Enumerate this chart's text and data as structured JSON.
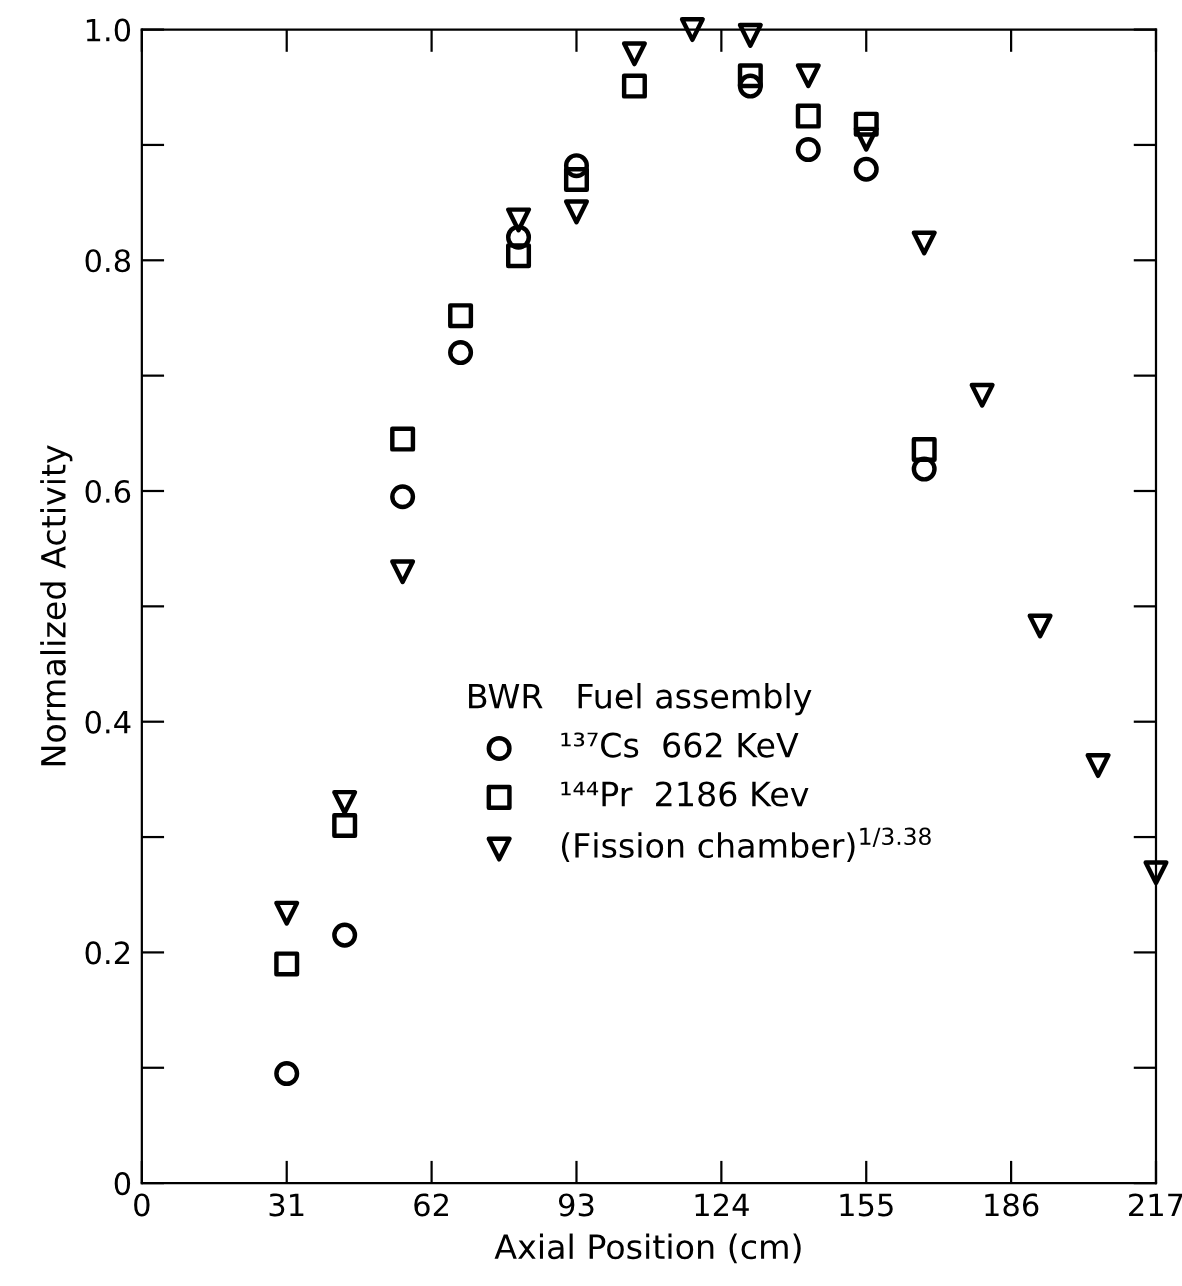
{
  "chart_data": {
    "type": "scatter",
    "xlabel": "Axial Position (cm)",
    "ylabel": "Normalized Activity",
    "legend_title": "BWR   Fuel assembly",
    "x": [
      31,
      43.4,
      55.8,
      68.2,
      80.6,
      93,
      105.4,
      117.8,
      130.2,
      142.6,
      155,
      167.4,
      179.8,
      192.2,
      204.6,
      217
    ],
    "series": [
      {
        "name": "¹³⁷Cs  662 KeV",
        "color": "#000000",
        "marker": "circle",
        "values": [
          0.095,
          0.215,
          0.595,
          0.72,
          0.82,
          0.882,
          null,
          null,
          0.951,
          0.896,
          0.879,
          0.619,
          null,
          null,
          null,
          null
        ]
      },
      {
        "name": "¹⁴⁴Pr  2186 Kev",
        "color": "#000000",
        "marker": "square",
        "values": [
          0.19,
          0.31,
          0.645,
          0.752,
          0.804,
          0.87,
          0.951,
          null,
          0.96,
          0.925,
          0.918,
          0.636,
          null,
          null,
          null,
          null
        ]
      },
      {
        "name": "(Fission chamber)$^{1/3.38}$",
        "color": "#000000",
        "marker": "triangle",
        "values": [
          0.234,
          0.33,
          0.53,
          null,
          0.835,
          0.842,
          0.979,
          1.0,
          0.995,
          0.96,
          0.905,
          0.815,
          0.683,
          0.483,
          0.362,
          0.269
        ]
      }
    ],
    "xlim": [
      0,
      217
    ],
    "ylim": [
      0,
      1.0
    ],
    "xticks": [
      0,
      31,
      62,
      93,
      124,
      155,
      186,
      217
    ],
    "yticks": [
      0,
      {
        "value": 0.1,
        "label": null
      },
      0.2,
      {
        "value": 0.3,
        "label": null
      },
      0.4,
      {
        "value": 0.5,
        "label": null
      },
      0.6,
      {
        "value": 0.7,
        "label": null
      },
      0.8,
      {
        "value": 0.9,
        "label": null
      },
      {
        "value": 1.0,
        "label": "1.0"
      }
    ],
    "grid": false,
    "legend": "bottom"
  }
}
